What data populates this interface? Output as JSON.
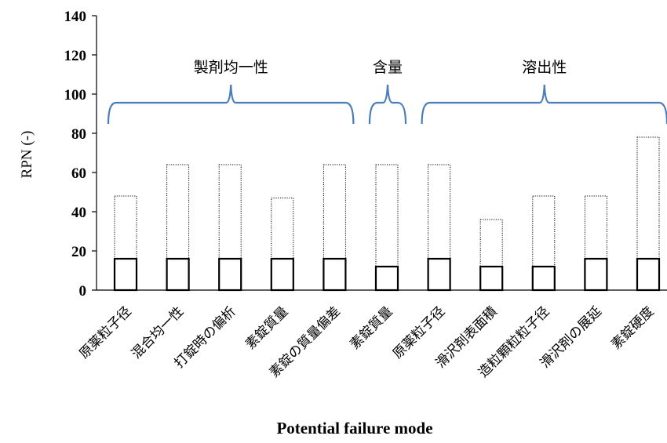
{
  "chart_data": {
    "type": "bar",
    "categories": [
      "原薬粒子径",
      "混合均一性",
      "打錠時の偏析",
      "素錠質量",
      "素錠の質量偏差",
      "素錠質量",
      "原薬粒子径",
      "滑沢剤表面積",
      "造粒顆粒粒子径",
      "滑沢剤の展延",
      "素錠硬度"
    ],
    "series": [
      {
        "values": [
          48,
          64,
          64,
          47,
          64,
          64,
          64,
          36,
          48,
          48,
          78
        ],
        "color": "#000000",
        "style": "dotted-outline"
      },
      {
        "values": [
          16,
          16,
          16,
          16,
          16,
          12,
          16,
          12,
          12,
          16,
          16
        ],
        "color": "#000000",
        "style": "solid-outline"
      }
    ],
    "groups": [
      {
        "label": "製剤均一性",
        "range": [
          0,
          4
        ]
      },
      {
        "label": "含量",
        "range": [
          5,
          5
        ]
      },
      {
        "label": "溶出性",
        "range": [
          6,
          10
        ]
      }
    ],
    "bracket_color": "#4a7ebb",
    "yticks": [
      0,
      20,
      40,
      60,
      80,
      100,
      120,
      140
    ],
    "ylim": [
      0,
      140
    ],
    "ylabel": "RPN (-)",
    "xlabel": "Potential failure mode",
    "grid": false,
    "legend": "none"
  }
}
